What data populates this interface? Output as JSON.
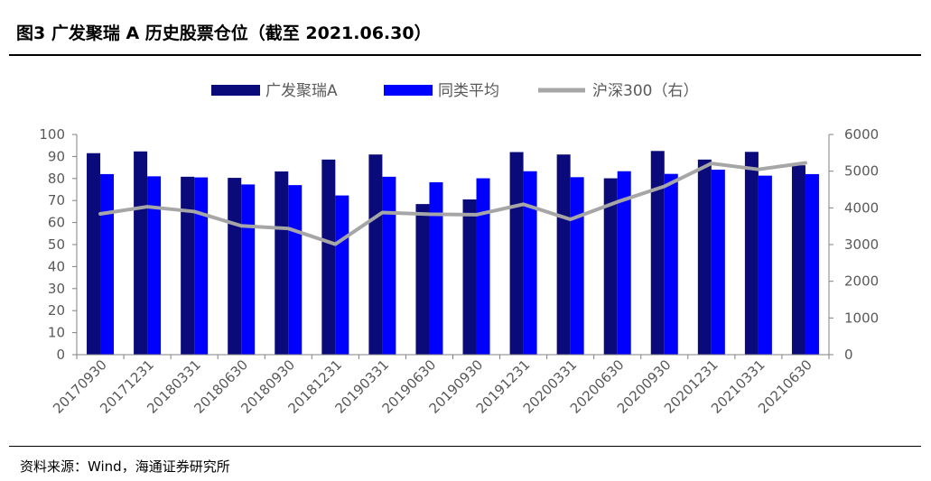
{
  "title": "图3   广发聚瑞 A 历史股票仓位（截至 2021.06.30）",
  "source": "资料来源：Wind，海通证券研究所",
  "colors": {
    "fund": "#0a0a7a",
    "peer": "#0000ff",
    "index": "#a6a6a6"
  },
  "chart_data": {
    "type": "bar",
    "categories": [
      "20170930",
      "20171231",
      "20180331",
      "20180630",
      "20180930",
      "20181231",
      "20190331",
      "20190630",
      "20190930",
      "20191231",
      "20200331",
      "20200630",
      "20200930",
      "20201231",
      "20210331",
      "20210630"
    ],
    "series": [
      {
        "name": "广发聚瑞A",
        "type": "bar",
        "axis": "left",
        "color": "#0a0a7a",
        "values": [
          91.5,
          92.3,
          80.8,
          80.3,
          83.2,
          88.6,
          90.9,
          68.4,
          70.5,
          92.0,
          90.9,
          80.1,
          92.5,
          88.6,
          92.1,
          86.0
        ]
      },
      {
        "name": "同类平均",
        "type": "bar",
        "axis": "left",
        "color": "#0000ff",
        "values": [
          82.0,
          81.0,
          80.5,
          77.3,
          77.0,
          72.3,
          80.8,
          78.3,
          80.1,
          83.3,
          80.6,
          83.3,
          82.1,
          84.0,
          81.3,
          82.0
        ]
      },
      {
        "name": "沪深300（右）",
        "type": "line",
        "axis": "right",
        "color": "#a6a6a6",
        "values": [
          3836,
          4031,
          3899,
          3510,
          3438,
          3011,
          3873,
          3826,
          3814,
          4097,
          3687,
          4163,
          4587,
          5211,
          5049,
          5224
        ]
      }
    ],
    "left_axis": {
      "min": 0,
      "max": 100,
      "step": 10,
      "ticks": [
        "0",
        "10",
        "20",
        "30",
        "40",
        "50",
        "60",
        "70",
        "80",
        "90",
        "100"
      ]
    },
    "right_axis": {
      "min": 0,
      "max": 6000,
      "step": 1000,
      "ticks": [
        "0",
        "1000",
        "2000",
        "3000",
        "4000",
        "5000",
        "6000"
      ]
    },
    "legend_position": "top",
    "grid": false
  }
}
